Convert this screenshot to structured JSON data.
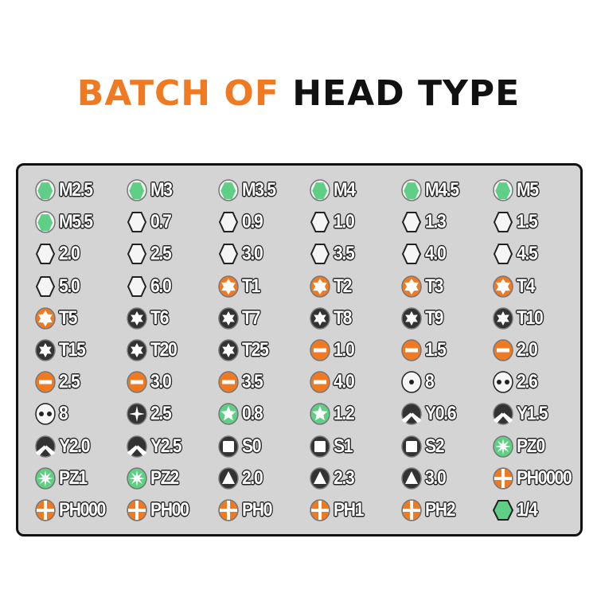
{
  "title": {
    "part1": "BATCH OF",
    "part2": "HEAD TYPE"
  },
  "colors": {
    "orange": "#f07a22",
    "green": "#5fcf86",
    "dark": "#333333",
    "board": "#d4d4d4"
  },
  "bits": [
    [
      "hex-green",
      "M2.5"
    ],
    [
      "hex-green",
      "M3"
    ],
    [
      "hex-green",
      "M3.5"
    ],
    [
      "hex-green",
      "M4"
    ],
    [
      "hex-green",
      "M4.5"
    ],
    [
      "hex-green",
      "M5"
    ],
    [
      "hex-green",
      "M5.5"
    ],
    [
      "hex-white",
      "0.7"
    ],
    [
      "hex-white",
      "0.9"
    ],
    [
      "hex-white",
      "1.0"
    ],
    [
      "hex-white",
      "1.3"
    ],
    [
      "hex-white",
      "1.5"
    ],
    [
      "hex-white",
      "2.0"
    ],
    [
      "hex-white",
      "2.5"
    ],
    [
      "hex-white",
      "3.0"
    ],
    [
      "hex-white",
      "3.5"
    ],
    [
      "hex-white",
      "4.0"
    ],
    [
      "hex-white",
      "4.5"
    ],
    [
      "hex-white",
      "5.0"
    ],
    [
      "hex-white",
      "6.0"
    ],
    [
      "torx-orange",
      "T1"
    ],
    [
      "torx-orange",
      "T2"
    ],
    [
      "torx-orange",
      "T3"
    ],
    [
      "torx-orange",
      "T4"
    ],
    [
      "torx-orange",
      "T5"
    ],
    [
      "torx-dark",
      "T6"
    ],
    [
      "torx-dark",
      "T7"
    ],
    [
      "torx-dark",
      "T8"
    ],
    [
      "torx-dark",
      "T9"
    ],
    [
      "torx-dark",
      "T10"
    ],
    [
      "torx-dark",
      "T15"
    ],
    [
      "torx-dark",
      "T20"
    ],
    [
      "torx-dark",
      "T25"
    ],
    [
      "slot-orange",
      "1.0"
    ],
    [
      "slot-orange",
      "1.5"
    ],
    [
      "slot-orange",
      "2.0"
    ],
    [
      "slot-orange",
      "2.5"
    ],
    [
      "slot-orange",
      "3.0"
    ],
    [
      "slot-orange",
      "3.5"
    ],
    [
      "slot-orange",
      "4.0"
    ],
    [
      "center-pin",
      "8"
    ],
    [
      "two-pin",
      "2.6"
    ],
    [
      "two-pin",
      "8"
    ],
    [
      "cross-dark",
      "2.5"
    ],
    [
      "star-green",
      "0.8"
    ],
    [
      "star-green",
      "1.2"
    ],
    [
      "tri-wing",
      "Y0.6"
    ],
    [
      "tri-wing",
      "Y1.5"
    ],
    [
      "tri-wing",
      "Y2.0"
    ],
    [
      "tri-wing",
      "Y2.5"
    ],
    [
      "square",
      "S0"
    ],
    [
      "square",
      "S1"
    ],
    [
      "square",
      "S2"
    ],
    [
      "pozi-green",
      "PZ0"
    ],
    [
      "pozi-green",
      "PZ1"
    ],
    [
      "pozi-green",
      "PZ2"
    ],
    [
      "triangle",
      "2.0"
    ],
    [
      "triangle",
      "2.3"
    ],
    [
      "triangle",
      "3.0"
    ],
    [
      "phillips-orange",
      "PH0000"
    ],
    [
      "phillips-orange",
      "PH000"
    ],
    [
      "phillips-orange",
      "PH00"
    ],
    [
      "phillips-orange",
      "PH0"
    ],
    [
      "phillips-orange",
      "PH1"
    ],
    [
      "phillips-orange",
      "PH2"
    ],
    [
      "hex-big-green",
      "1/4"
    ]
  ]
}
